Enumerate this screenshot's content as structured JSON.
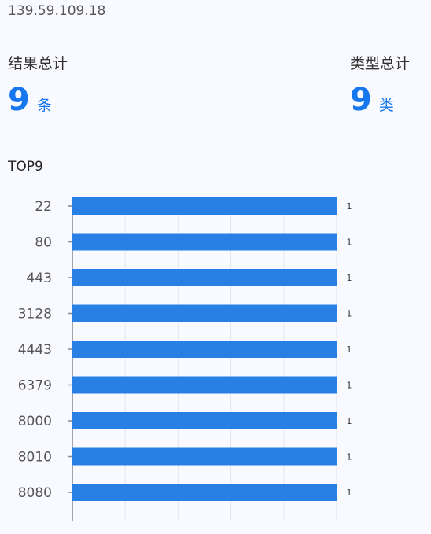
{
  "ip": "139.59.109.18",
  "stats": [
    {
      "label": "结果总计",
      "value": "9",
      "unit": "条"
    },
    {
      "label": "类型总计",
      "value": "9",
      "unit": "类"
    }
  ],
  "top_title": "TOP9",
  "colors": {
    "accent": "#1777ee",
    "bar": "#2880e4"
  },
  "chart_data": {
    "type": "bar",
    "orientation": "horizontal",
    "categories": [
      "22",
      "80",
      "443",
      "3128",
      "4443",
      "6379",
      "8000",
      "8010",
      "8080"
    ],
    "values": [
      1,
      1,
      1,
      1,
      1,
      1,
      1,
      1,
      1
    ],
    "xlim": [
      0,
      1
    ],
    "grid": true,
    "data_labels": true
  }
}
